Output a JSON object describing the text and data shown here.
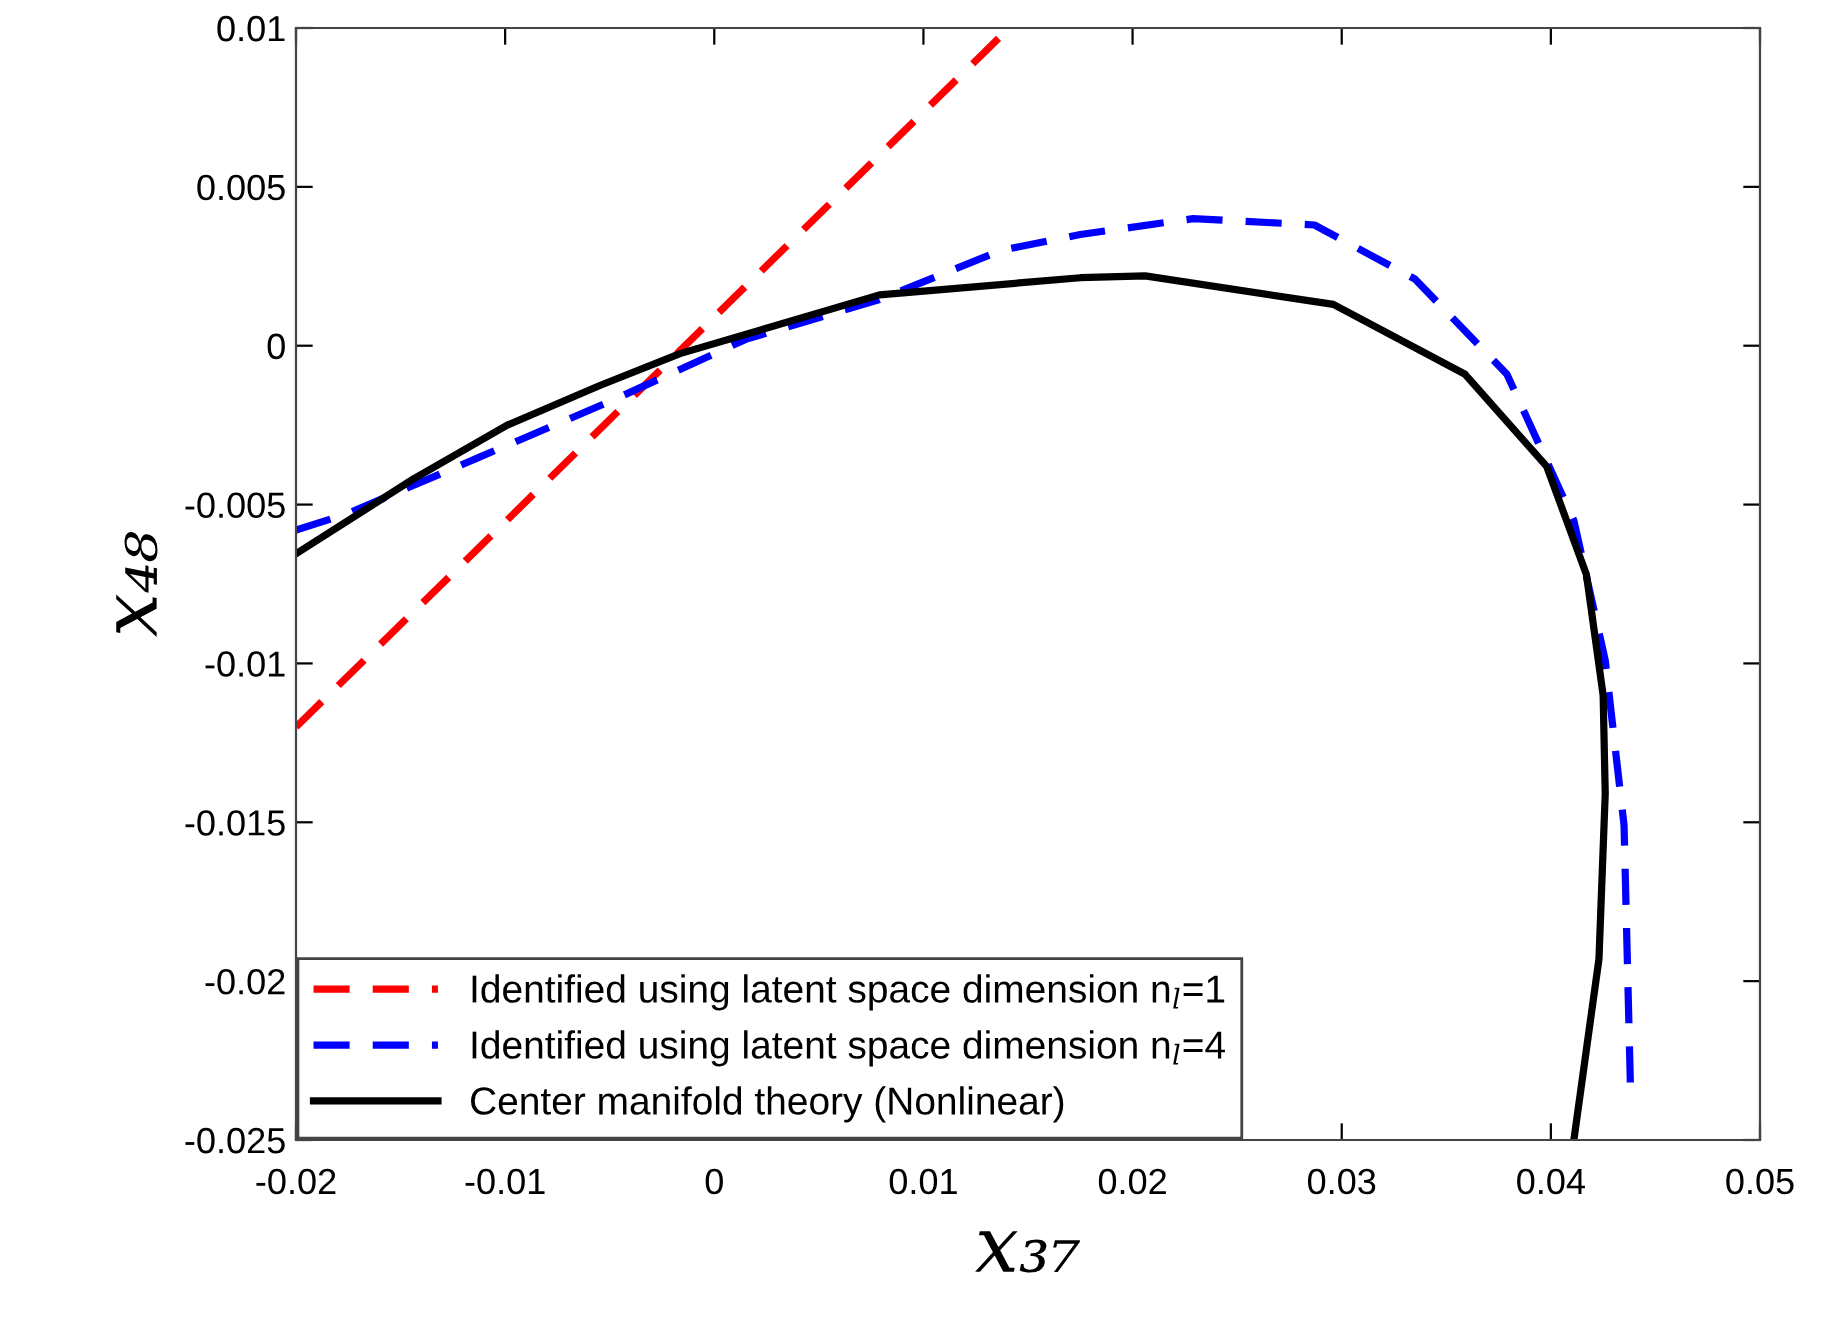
{
  "chart_data": {
    "type": "line",
    "xlabel": "x₃₇",
    "ylabel": "x₄₈",
    "xlim": [
      -0.02,
      0.05
    ],
    "ylim": [
      -0.025,
      0.01
    ],
    "xticks": [
      -0.02,
      -0.01,
      0,
      0.01,
      0.02,
      0.03,
      0.04,
      0.05
    ],
    "yticks": [
      -0.025,
      -0.02,
      -0.015,
      -0.01,
      -0.005,
      0,
      0.005,
      0.01
    ],
    "grid": false,
    "legend": "bottom left",
    "marker": "none",
    "series": [
      {
        "name": "Identified using latent space dimension n$_{l}$=1",
        "color": "#ff0000",
        "line_style": "dashed",
        "x": [
          -0.02,
          0.0141
        ],
        "values": [
          -0.012,
          0.01
        ]
      },
      {
        "name": "Identified using latent space dimension n$_{l}$=4",
        "color": "#0000ff",
        "line_style": "dashed",
        "x": [
          -0.02,
          -0.0176,
          -0.0112,
          -0.0048,
          0.0015,
          0.0079,
          0.0137,
          0.0175,
          0.0229,
          0.0287,
          0.0335,
          0.0379,
          0.0411,
          0.0426,
          0.0435,
          0.0438
        ],
        "values": [
          -0.0058,
          -0.0053,
          -0.0035,
          -0.0017,
          0.0002,
          0.00145,
          0.003,
          0.0035,
          0.004,
          0.0038,
          0.0021,
          -0.0009,
          -0.0055,
          -0.0099,
          -0.0151,
          -0.0232
        ]
      },
      {
        "name": "Center manifold theory (Nonlinear)",
        "color": "#000000",
        "line_style": "solid",
        "x": [
          -0.02,
          -0.0144,
          -0.0099,
          -0.0055,
          -0.00164,
          0.0079,
          0.0175,
          0.0206,
          0.0296,
          0.0359,
          0.0398,
          0.0417,
          0.0425,
          0.0426,
          0.0423,
          0.0411
        ],
        "values": [
          -0.00655,
          -0.0042,
          -0.0025,
          -0.00126,
          -0.00025,
          0.0016,
          0.00214,
          0.0022,
          0.0013,
          -0.0009,
          -0.0038,
          -0.0072,
          -0.011,
          -0.0141,
          -0.0193,
          -0.025
        ]
      }
    ]
  }
}
